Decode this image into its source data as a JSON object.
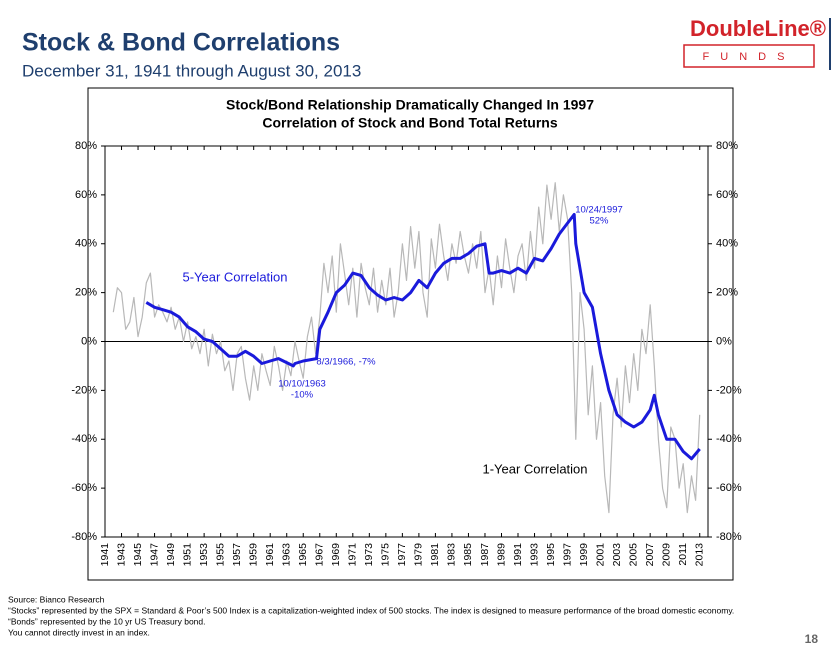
{
  "header": {
    "title": "Stock & Bond Correlations",
    "subtitle": "December 31, 1941 through August 30, 2013",
    "logo": "DoubleLine®",
    "logo_sub": "FUNDS"
  },
  "chart_data": {
    "type": "line",
    "title": "Stock/Bond Relationship Dramatically Changed In 1997",
    "subtitle": "Correlation of Stock and Bond Total Returns",
    "xlim": [
      1941,
      2014
    ],
    "xticks": [
      1941,
      1943,
      1945,
      1947,
      1949,
      1951,
      1953,
      1955,
      1957,
      1959,
      1961,
      1963,
      1965,
      1967,
      1969,
      1971,
      1973,
      1975,
      1977,
      1979,
      1981,
      1983,
      1985,
      1987,
      1989,
      1991,
      1993,
      1995,
      1997,
      1999,
      2001,
      2003,
      2005,
      2007,
      2009,
      2011,
      2013
    ],
    "ylim": [
      -80,
      80
    ],
    "yticks": [
      {
        "value": -80,
        "label": "-80%"
      },
      {
        "value": -60,
        "label": "-60%"
      },
      {
        "value": -40,
        "label": "-40%"
      },
      {
        "value": -20,
        "label": "-20%"
      },
      {
        "value": 0,
        "label": "0%"
      },
      {
        "value": 20,
        "label": "20%"
      },
      {
        "value": 40,
        "label": "40%"
      },
      {
        "value": 60,
        "label": "60%"
      },
      {
        "value": 80,
        "label": "80%"
      }
    ],
    "series": [
      {
        "name": "1-Year Correlation",
        "color": "#b8b8b8",
        "x": [
          1942,
          1942.5,
          1943,
          1943.5,
          1944,
          1944.5,
          1945,
          1945.5,
          1946,
          1946.5,
          1947,
          1947.5,
          1948,
          1948.5,
          1949,
          1949.5,
          1950,
          1950.5,
          1951,
          1951.5,
          1952,
          1952.5,
          1953,
          1953.5,
          1954,
          1954.5,
          1955,
          1955.5,
          1956,
          1956.5,
          1957,
          1957.5,
          1958,
          1958.5,
          1959,
          1959.5,
          1960,
          1960.5,
          1961,
          1961.5,
          1962,
          1962.5,
          1963,
          1963.5,
          1964,
          1964.5,
          1965,
          1965.5,
          1966,
          1966.5,
          1967,
          1967.5,
          1968,
          1968.5,
          1969,
          1969.5,
          1970,
          1970.5,
          1971,
          1971.5,
          1972,
          1972.5,
          1973,
          1973.5,
          1974,
          1974.5,
          1975,
          1975.5,
          1976,
          1976.5,
          1977,
          1977.5,
          1978,
          1978.5,
          1979,
          1979.5,
          1980,
          1980.5,
          1981,
          1981.5,
          1982,
          1982.5,
          1983,
          1983.5,
          1984,
          1984.5,
          1985,
          1985.5,
          1986,
          1986.5,
          1987,
          1987.5,
          1988,
          1988.5,
          1989,
          1989.5,
          1990,
          1990.5,
          1991,
          1991.5,
          1992,
          1992.5,
          1993,
          1993.5,
          1994,
          1994.5,
          1995,
          1995.5,
          1996,
          1996.5,
          1997,
          1997.5,
          1998,
          1998.5,
          1999,
          1999.5,
          2000,
          2000.5,
          2001,
          2001.5,
          2002,
          2002.5,
          2003,
          2003.5,
          2004,
          2004.5,
          2005,
          2005.5,
          2006,
          2006.5,
          2007,
          2007.5,
          2008,
          2008.5,
          2009,
          2009.5,
          2010,
          2010.5,
          2011,
          2011.5,
          2012,
          2012.5,
          2013
        ],
        "values": [
          12,
          22,
          20,
          5,
          8,
          18,
          2,
          10,
          24,
          28,
          10,
          15,
          12,
          8,
          14,
          5,
          10,
          0,
          8,
          -3,
          2,
          -5,
          5,
          -10,
          3,
          -5,
          0,
          -12,
          -8,
          -20,
          -5,
          -2,
          -15,
          -24,
          -10,
          -20,
          -5,
          -12,
          -18,
          -2,
          -10,
          -20,
          -8,
          -14,
          0,
          -8,
          -15,
          2,
          10,
          -5,
          10,
          32,
          20,
          35,
          12,
          40,
          28,
          15,
          30,
          10,
          32,
          22,
          15,
          30,
          12,
          25,
          15,
          30,
          10,
          20,
          40,
          25,
          47,
          30,
          45,
          20,
          10,
          42,
          30,
          48,
          35,
          25,
          40,
          32,
          45,
          35,
          28,
          40,
          30,
          45,
          20,
          30,
          15,
          35,
          22,
          42,
          30,
          20,
          35,
          40,
          25,
          45,
          30,
          55,
          40,
          64,
          50,
          65,
          45,
          60,
          50,
          20,
          -40,
          20,
          5,
          -30,
          -10,
          -40,
          -25,
          -55,
          -70,
          -30,
          -15,
          -35,
          -10,
          -25,
          -5,
          -20,
          5,
          -5,
          15,
          -10,
          -40,
          -60,
          -68,
          -35,
          -40,
          -60,
          -50,
          -70,
          -55,
          -65,
          -30
        ]
      },
      {
        "name": "5-Year Correlation",
        "color": "#1a1adb",
        "x": [
          1946,
          1947,
          1948,
          1949,
          1950,
          1951,
          1952,
          1953,
          1954,
          1955,
          1956,
          1957,
          1958,
          1959,
          1960,
          1961,
          1962,
          1963.8,
          1964,
          1965,
          1966.6,
          1967,
          1968,
          1969,
          1970,
          1971,
          1972,
          1973,
          1974,
          1975,
          1976,
          1977,
          1978,
          1979,
          1980,
          1981,
          1982,
          1983,
          1984,
          1985,
          1986,
          1987,
          1987.5,
          1988,
          1989,
          1990,
          1991,
          1992,
          1993,
          1994,
          1995,
          1996,
          1997.8,
          1998,
          1999,
          2000,
          2001,
          2002,
          2003,
          2004,
          2005,
          2006,
          2007,
          2007.5,
          2008,
          2009,
          2010,
          2011,
          2012,
          2013
        ],
        "values": [
          16,
          14,
          13,
          12,
          10,
          6,
          4,
          1,
          0,
          -3,
          -6,
          -6,
          -4,
          -6,
          -9,
          -8,
          -7,
          -10,
          -9,
          -8,
          -7,
          5,
          12,
          20,
          23,
          28,
          27,
          22,
          19,
          17,
          18,
          17,
          20,
          25,
          22,
          28,
          32,
          34,
          34,
          36,
          39,
          40,
          28,
          28,
          29,
          28,
          30,
          28,
          34,
          33,
          38,
          44,
          52,
          40,
          20,
          14,
          -5,
          -20,
          -30,
          -33,
          -35,
          -33,
          -28,
          -22,
          -30,
          -40,
          -40,
          -45,
          -48,
          -44
        ]
      }
    ],
    "annotations": [
      "5-Year Correlation",
      "1-Year Correlation",
      "10/24/1997",
      "52%",
      "8/3/1966, -7%",
      "10/10/1963",
      "-10%"
    ]
  },
  "footer": {
    "notes": [
      "Source: Bianco Research",
      "“Stocks” represented by the SPX = Standard & Poor’s 500 Index is a capitalization-weighted index of 500 stocks. The index is designed to measure performance of the broad domestic economy.",
      "“Bonds” represented by the 10 yr US Treasury bond.",
      "You cannot directly invest in an index."
    ],
    "page": "18"
  }
}
